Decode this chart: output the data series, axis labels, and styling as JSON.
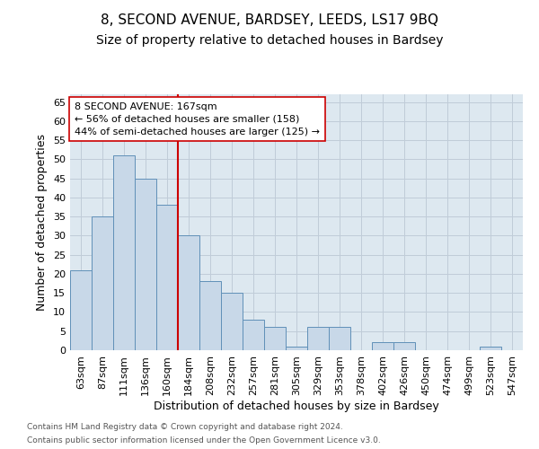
{
  "title1": "8, SECOND AVENUE, BARDSEY, LEEDS, LS17 9BQ",
  "title2": "Size of property relative to detached houses in Bardsey",
  "xlabel": "Distribution of detached houses by size in Bardsey",
  "ylabel": "Number of detached properties",
  "categories": [
    "63sqm",
    "87sqm",
    "111sqm",
    "136sqm",
    "160sqm",
    "184sqm",
    "208sqm",
    "232sqm",
    "257sqm",
    "281sqm",
    "305sqm",
    "329sqm",
    "353sqm",
    "378sqm",
    "402sqm",
    "426sqm",
    "450sqm",
    "474sqm",
    "499sqm",
    "523sqm",
    "547sqm"
  ],
  "values": [
    21,
    35,
    51,
    45,
    38,
    30,
    18,
    15,
    8,
    6,
    1,
    6,
    6,
    0,
    2,
    2,
    0,
    0,
    0,
    1,
    0
  ],
  "bar_color": "#c8d8e8",
  "bar_edge_color": "#6090b8",
  "vline_color": "#cc0000",
  "vline_x": 4.5,
  "annotation_title": "8 SECOND AVENUE: 167sqm",
  "annotation_line1": "← 56% of detached houses are smaller (158)",
  "annotation_line2": "44% of semi-detached houses are larger (125) →",
  "annotation_box_facecolor": "#ffffff",
  "annotation_box_edgecolor": "#cc0000",
  "ylim": [
    0,
    67
  ],
  "yticks": [
    0,
    5,
    10,
    15,
    20,
    25,
    30,
    35,
    40,
    45,
    50,
    55,
    60,
    65
  ],
  "grid_color": "#c0ccd8",
  "background_color": "#dde8f0",
  "footer1": "Contains HM Land Registry data © Crown copyright and database right 2024.",
  "footer2": "Contains public sector information licensed under the Open Government Licence v3.0.",
  "title1_fontsize": 11,
  "title2_fontsize": 10,
  "annotation_fontsize": 8,
  "axis_label_fontsize": 9,
  "tick_fontsize": 8,
  "footer_fontsize": 6.5
}
